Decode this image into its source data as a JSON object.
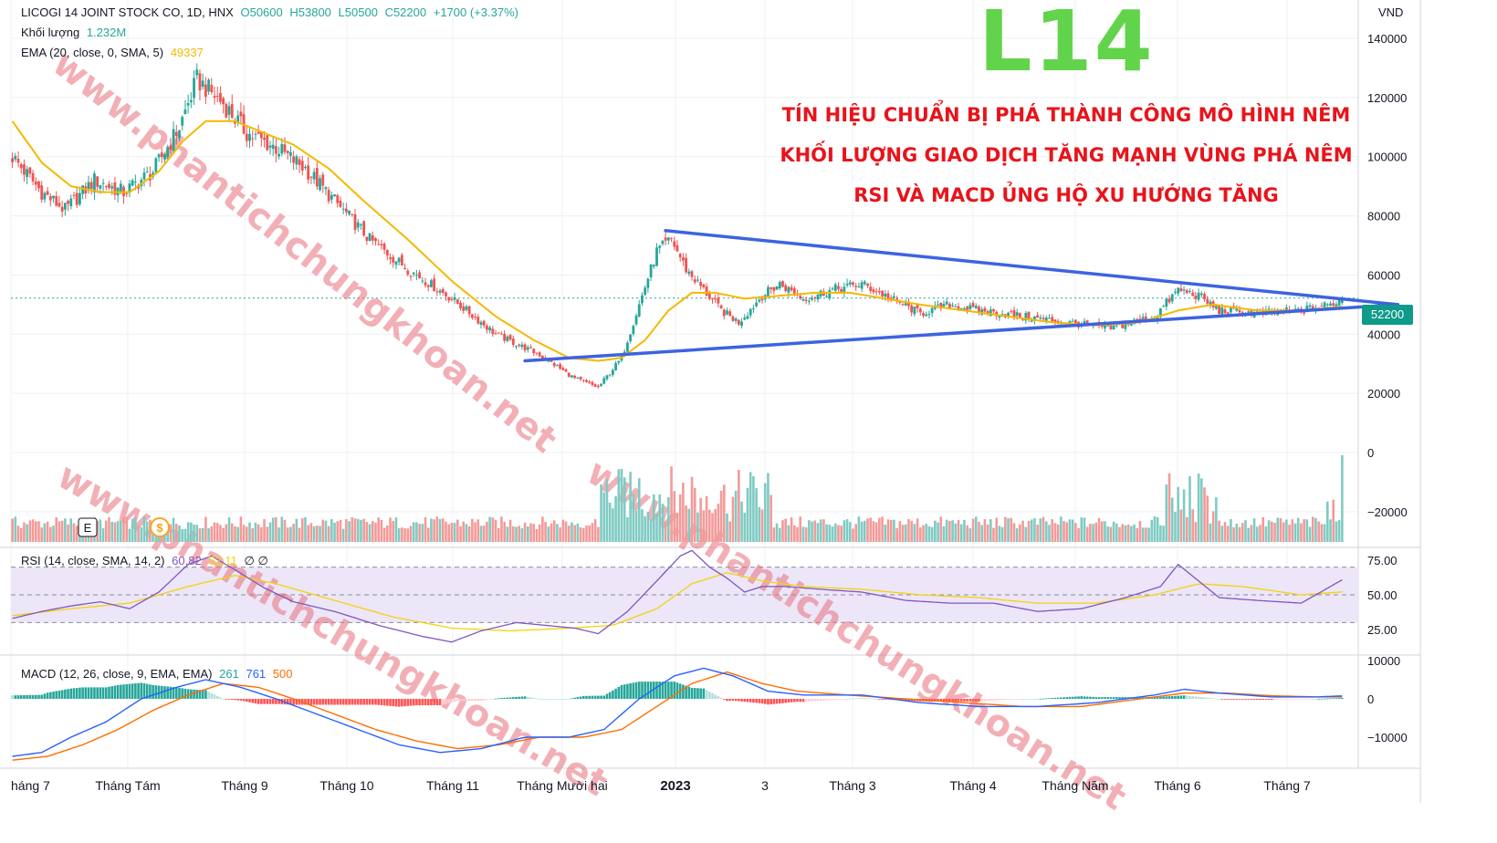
{
  "header": {
    "symbol_line": "LICOGI 14 JOINT STOCK CO, 1D, HNX",
    "open": "O50600",
    "high": "H53800",
    "low": "L50500",
    "close": "C52200",
    "change": "+1700 (+3.37%)",
    "volume_label": "Khối lượng",
    "volume_value": "1.232M",
    "ema_label": "EMA (20, close, 0, SMA, 5)",
    "ema_value": "49337"
  },
  "overlay": {
    "ticker": "L14",
    "notes": [
      "TÍN HIỆU CHUẨN BỊ PHÁ THÀNH CÔNG MÔ HÌNH NÊM",
      "KHỐI LƯỢNG GIAO DỊCH TĂNG MẠNH VÙNG PHÁ NÊM",
      "RSI VÀ MACD ỦNG HỘ XU HƯỚNG TĂNG"
    ],
    "watermark": "www.phantichchungkhoan.net"
  },
  "price_axis": {
    "unit": "VND",
    "ticks": [
      "140000",
      "120000",
      "100000",
      "80000",
      "60000",
      "40000",
      "20000",
      "0",
      "−20000"
    ],
    "last_price": "52200"
  },
  "rsi_panel": {
    "label": "RSI (14, close, SMA, 14, 2)",
    "rsi_value": "60.82",
    "ma_value": "52.11",
    "extra": "∅ ∅",
    "ticks": [
      "75.00",
      "50.00",
      "25.00"
    ],
    "upper": 70,
    "lower": 30
  },
  "macd_panel": {
    "label": "MACD (12, 26, close, 9, EMA, EMA)",
    "hist_value": "261",
    "macd_value": "761",
    "signal_value": "500",
    "ticks": [
      "10000",
      "0",
      "−10000"
    ]
  },
  "time_axis": [
    "háng 7",
    "Tháng Tám",
    "Tháng 9",
    "Tháng 10",
    "Tháng 11",
    "Tháng Mười hai",
    "2023",
    "3",
    "Tháng 3",
    "Tháng 4",
    "Tháng Năm",
    "Tháng 6",
    "Tháng 7"
  ],
  "colors": {
    "up": "#26a69a",
    "down": "#ef5350",
    "vol_up": "#7fcbc3",
    "vol_down": "#f29b99",
    "ema": "#f5b800",
    "wedge": "#3d63e0",
    "rsi": "#7e57c2",
    "rsi_ma": "#f5d20a",
    "macd": "#2962ff",
    "signal": "#ff6d00",
    "watermark": "#e8707a"
  },
  "chart_data": {
    "type": "candlestick",
    "title": "LICOGI 14 JOINT STOCK CO, 1D, HNX",
    "ylabel": "VND",
    "ylim": [
      -30000,
      150000
    ],
    "last": {
      "open": 50600,
      "high": 53800,
      "low": 50500,
      "close": 52200
    },
    "price_path": [
      [
        0,
        100000
      ],
      [
        10,
        88000
      ],
      [
        18,
        82000
      ],
      [
        28,
        92000
      ],
      [
        38,
        88000
      ],
      [
        48,
        95000
      ],
      [
        57,
        110000
      ],
      [
        63,
        126000
      ],
      [
        72,
        118000
      ],
      [
        80,
        108000
      ],
      [
        90,
        103000
      ],
      [
        100,
        96000
      ],
      [
        110,
        85000
      ],
      [
        122,
        72000
      ],
      [
        135,
        62000
      ],
      [
        150,
        52000
      ],
      [
        165,
        40000
      ],
      [
        180,
        33000
      ],
      [
        192,
        25000
      ],
      [
        200,
        22000
      ],
      [
        208,
        32000
      ],
      [
        214,
        50000
      ],
      [
        220,
        68000
      ],
      [
        225,
        72000
      ],
      [
        230,
        62000
      ],
      [
        236,
        55000
      ],
      [
        242,
        48000
      ],
      [
        248,
        44000
      ],
      [
        256,
        53000
      ],
      [
        262,
        57000
      ],
      [
        270,
        52000
      ],
      [
        280,
        55000
      ],
      [
        290,
        57000
      ],
      [
        300,
        52000
      ],
      [
        310,
        47000
      ],
      [
        320,
        50000
      ],
      [
        330,
        48000
      ],
      [
        345,
        46000
      ],
      [
        360,
        44000
      ],
      [
        375,
        42000
      ],
      [
        390,
        46000
      ],
      [
        398,
        55000
      ],
      [
        405,
        53000
      ],
      [
        412,
        48000
      ],
      [
        425,
        47000
      ],
      [
        440,
        48000
      ],
      [
        450,
        50000
      ],
      [
        454,
        52200
      ]
    ],
    "ema_path": [
      [
        0,
        112000
      ],
      [
        10,
        98000
      ],
      [
        20,
        90000
      ],
      [
        30,
        88000
      ],
      [
        40,
        88000
      ],
      [
        50,
        95000
      ],
      [
        58,
        105000
      ],
      [
        66,
        112000
      ],
      [
        76,
        112000
      ],
      [
        86,
        108000
      ],
      [
        96,
        104000
      ],
      [
        108,
        96000
      ],
      [
        120,
        85000
      ],
      [
        135,
        72000
      ],
      [
        150,
        58000
      ],
      [
        165,
        46000
      ],
      [
        178,
        38000
      ],
      [
        190,
        32000
      ],
      [
        200,
        31000
      ],
      [
        208,
        32000
      ],
      [
        216,
        38000
      ],
      [
        224,
        48000
      ],
      [
        232,
        54000
      ],
      [
        240,
        54000
      ],
      [
        250,
        52000
      ],
      [
        262,
        53000
      ],
      [
        274,
        54000
      ],
      [
        286,
        54000
      ],
      [
        298,
        52000
      ],
      [
        310,
        50000
      ],
      [
        325,
        48000
      ],
      [
        340,
        46000
      ],
      [
        355,
        44000
      ],
      [
        370,
        43000
      ],
      [
        385,
        44000
      ],
      [
        398,
        48000
      ],
      [
        410,
        50000
      ],
      [
        425,
        48000
      ],
      [
        440,
        48000
      ],
      [
        454,
        49337
      ]
    ],
    "wedge_upper": [
      [
        223,
        75000
      ],
      [
        473,
        50000
      ]
    ],
    "wedge_lower": [
      [
        175,
        31000
      ],
      [
        473,
        50000
      ]
    ],
    "volume_ylim": [
      -30000,
      150000
    ],
    "rsi_path": [
      [
        0,
        33
      ],
      [
        10,
        38
      ],
      [
        20,
        42
      ],
      [
        30,
        45
      ],
      [
        40,
        40
      ],
      [
        50,
        52
      ],
      [
        60,
        72
      ],
      [
        68,
        78
      ],
      [
        76,
        68
      ],
      [
        86,
        55
      ],
      [
        96,
        45
      ],
      [
        110,
        38
      ],
      [
        125,
        28
      ],
      [
        140,
        20
      ],
      [
        150,
        16
      ],
      [
        160,
        24
      ],
      [
        172,
        30
      ],
      [
        182,
        28
      ],
      [
        192,
        26
      ],
      [
        200,
        22
      ],
      [
        210,
        38
      ],
      [
        220,
        60
      ],
      [
        228,
        78
      ],
      [
        232,
        82
      ],
      [
        238,
        70
      ],
      [
        244,
        62
      ],
      [
        250,
        52
      ],
      [
        256,
        56
      ],
      [
        264,
        56
      ],
      [
        276,
        54
      ],
      [
        290,
        52
      ],
      [
        305,
        46
      ],
      [
        320,
        44
      ],
      [
        335,
        44
      ],
      [
        350,
        38
      ],
      [
        365,
        40
      ],
      [
        380,
        48
      ],
      [
        392,
        56
      ],
      [
        398,
        72
      ],
      [
        405,
        60
      ],
      [
        412,
        48
      ],
      [
        425,
        46
      ],
      [
        440,
        44
      ],
      [
        450,
        56
      ],
      [
        454,
        60.82
      ]
    ],
    "rsi_ma_path": [
      [
        0,
        35
      ],
      [
        20,
        40
      ],
      [
        40,
        44
      ],
      [
        60,
        56
      ],
      [
        76,
        64
      ],
      [
        90,
        58
      ],
      [
        110,
        46
      ],
      [
        130,
        34
      ],
      [
        150,
        26
      ],
      [
        170,
        24
      ],
      [
        190,
        26
      ],
      [
        205,
        28
      ],
      [
        220,
        40
      ],
      [
        232,
        58
      ],
      [
        244,
        66
      ],
      [
        256,
        60
      ],
      [
        270,
        56
      ],
      [
        290,
        54
      ],
      [
        310,
        50
      ],
      [
        330,
        48
      ],
      [
        350,
        44
      ],
      [
        370,
        44
      ],
      [
        390,
        50
      ],
      [
        405,
        58
      ],
      [
        420,
        56
      ],
      [
        440,
        50
      ],
      [
        454,
        52.11
      ]
    ],
    "macd_path": [
      [
        0,
        -15000
      ],
      [
        10,
        -14000
      ],
      [
        20,
        -10000
      ],
      [
        32,
        -6000
      ],
      [
        44,
        0
      ],
      [
        56,
        3000
      ],
      [
        66,
        5000
      ],
      [
        78,
        3000
      ],
      [
        90,
        0
      ],
      [
        104,
        -4000
      ],
      [
        118,
        -8000
      ],
      [
        132,
        -12000
      ],
      [
        146,
        -14000
      ],
      [
        160,
        -13000
      ],
      [
        175,
        -10000
      ],
      [
        190,
        -10000
      ],
      [
        202,
        -8000
      ],
      [
        214,
        0
      ],
      [
        226,
        6000
      ],
      [
        236,
        8000
      ],
      [
        246,
        6000
      ],
      [
        258,
        2000
      ],
      [
        270,
        1000
      ],
      [
        290,
        1000
      ],
      [
        310,
        -1000
      ],
      [
        330,
        -2000
      ],
      [
        350,
        -2000
      ],
      [
        370,
        -1000
      ],
      [
        390,
        1000
      ],
      [
        400,
        2500
      ],
      [
        412,
        1500
      ],
      [
        430,
        500
      ],
      [
        445,
        500
      ],
      [
        454,
        761
      ]
    ],
    "signal_path": [
      [
        0,
        -16000
      ],
      [
        12,
        -15000
      ],
      [
        24,
        -12000
      ],
      [
        36,
        -8000
      ],
      [
        48,
        -3000
      ],
      [
        60,
        1000
      ],
      [
        72,
        4000
      ],
      [
        84,
        3000
      ],
      [
        96,
        0
      ],
      [
        110,
        -4000
      ],
      [
        124,
        -8000
      ],
      [
        138,
        -11000
      ],
      [
        152,
        -13000
      ],
      [
        166,
        -12000
      ],
      [
        180,
        -10000
      ],
      [
        195,
        -10000
      ],
      [
        208,
        -8000
      ],
      [
        220,
        -2000
      ],
      [
        232,
        4000
      ],
      [
        244,
        7000
      ],
      [
        256,
        4000
      ],
      [
        268,
        2000
      ],
      [
        285,
        1000
      ],
      [
        305,
        0
      ],
      [
        325,
        -1000
      ],
      [
        345,
        -2000
      ],
      [
        365,
        -2000
      ],
      [
        385,
        0
      ],
      [
        400,
        1500
      ],
      [
        415,
        1500
      ],
      [
        430,
        800
      ],
      [
        445,
        500
      ],
      [
        454,
        500
      ]
    ]
  }
}
